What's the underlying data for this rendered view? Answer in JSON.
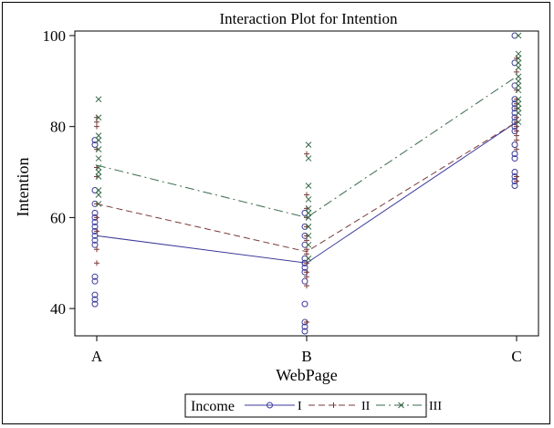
{
  "chart_data": {
    "type": "line",
    "title": "Interaction Plot for Intention",
    "xlabel": "WebPage",
    "ylabel": "Intention",
    "categories": [
      "A",
      "B",
      "C"
    ],
    "ylim": [
      34,
      101
    ],
    "yticks": [
      40,
      60,
      80,
      100
    ],
    "grid": false,
    "legend": {
      "title": "Income",
      "placement": "bottom-center"
    },
    "series": [
      {
        "name": "I",
        "color": "#3b3b9c",
        "marker": "circle",
        "dash": "solid",
        "means": [
          56,
          50,
          81
        ],
        "points": [
          [
            77,
            76,
            66,
            63,
            61,
            60,
            59,
            58,
            57,
            56,
            55,
            54,
            47,
            46,
            43,
            42,
            41
          ],
          [
            61,
            58,
            56,
            54,
            51,
            50,
            50,
            49,
            48,
            46,
            41,
            37,
            36,
            35
          ],
          [
            100,
            94,
            89,
            86,
            85,
            84,
            83,
            82,
            81,
            80,
            79,
            76,
            74,
            73,
            70,
            69,
            68,
            67
          ]
        ]
      },
      {
        "name": "II",
        "color": "#7a3a3a",
        "marker": "plus",
        "dash": "dashed",
        "means": [
          63,
          52.5,
          81
        ],
        "points": [
          [
            82,
            81,
            80,
            75,
            71,
            69,
            63,
            60,
            57,
            53,
            50
          ],
          [
            74,
            65,
            62,
            60,
            58,
            56,
            55,
            53,
            52,
            50,
            48,
            47,
            45,
            37
          ],
          [
            95,
            92,
            88,
            86,
            85,
            84,
            82,
            81,
            80,
            79,
            78,
            77,
            75,
            69,
            68
          ]
        ]
      },
      {
        "name": "III",
        "color": "#3a6a4a",
        "marker": "x",
        "dash": "dashdot",
        "means": [
          71.5,
          60,
          91
        ],
        "points": [
          [
            86,
            82,
            78,
            77,
            75,
            73,
            71,
            70,
            69,
            66,
            65,
            63
          ],
          [
            76,
            73,
            67,
            64,
            62,
            61,
            60,
            58,
            56,
            54,
            51
          ],
          [
            100,
            96,
            95,
            94,
            93,
            91,
            90,
            89,
            88,
            86,
            85,
            84,
            83,
            81
          ]
        ]
      }
    ]
  }
}
